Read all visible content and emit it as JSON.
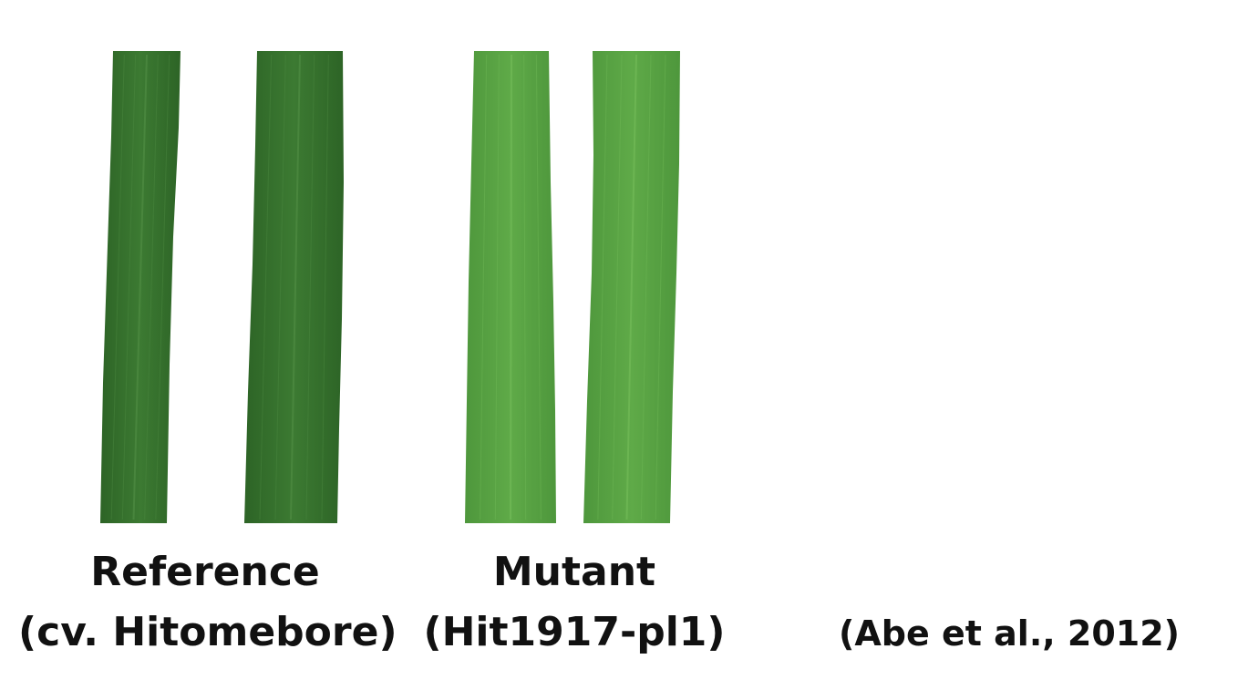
{
  "groups": [
    {
      "title": "Reference",
      "subtitle": "(cv. Hitomebore)",
      "leaf_color": "#3c7a32",
      "leaf_dark": "#2d6426",
      "leaf_light": "#4f8c43"
    },
    {
      "title": "Mutant",
      "subtitle": "(Hit1917-pl1)",
      "leaf_color": "#5faa48",
      "leaf_dark": "#4e973c",
      "leaf_light": "#72bb58"
    }
  ],
  "citation": "(Abe et al., 2012)"
}
